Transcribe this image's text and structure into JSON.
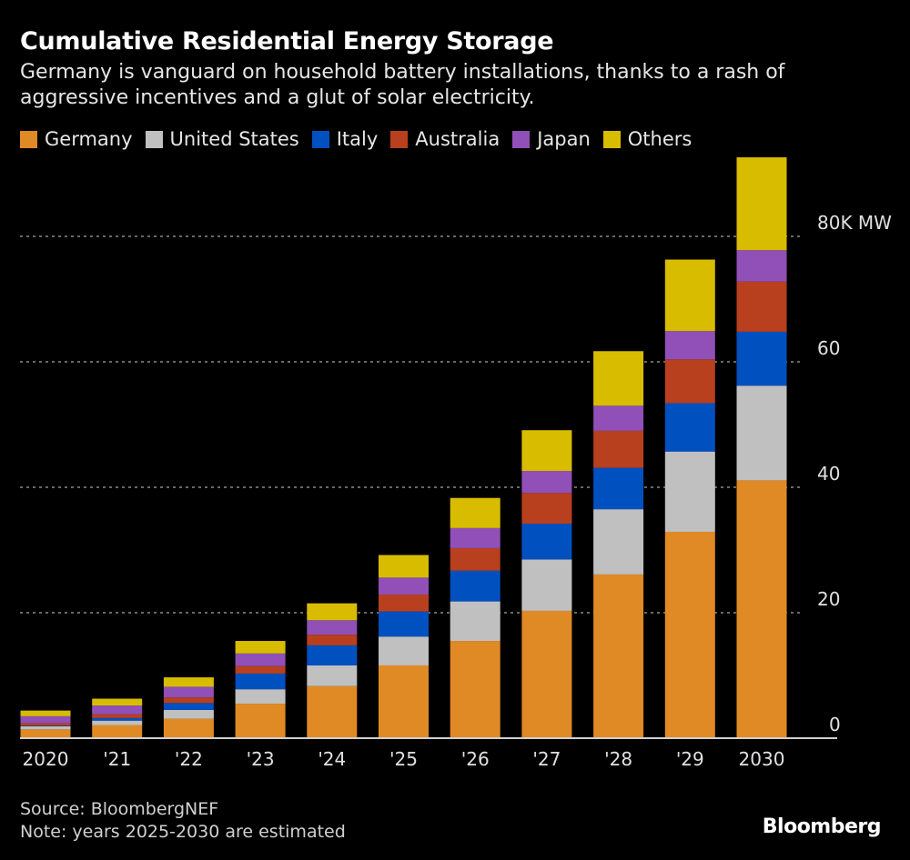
{
  "chart_data": {
    "type": "bar",
    "stacked": true,
    "title": "Cumulative Residential Energy Storage",
    "subtitle": "Germany is vanguard on household battery installations, thanks to a rash of aggressive incentives and a glut of solar electricity.",
    "categories": [
      "2020",
      "'21",
      "'22",
      "'23",
      "'24",
      "'25",
      "'26",
      "'27",
      "'28",
      "'29",
      "2030"
    ],
    "series": [
      {
        "name": "Germany",
        "color": "#e08a25",
        "values": [
          1.4,
          2.1,
          3.1,
          5.5,
          8.3,
          11.6,
          15.5,
          20.3,
          26.1,
          32.9,
          41.1
        ]
      },
      {
        "name": "United States",
        "color": "#c0c0c0",
        "values": [
          0.5,
          0.7,
          1.4,
          2.3,
          3.3,
          4.6,
          6.3,
          8.2,
          10.4,
          12.8,
          15.1
        ]
      },
      {
        "name": "Italy",
        "color": "#0050c0",
        "values": [
          0.1,
          0.4,
          1.1,
          2.5,
          3.2,
          4.0,
          4.9,
          5.7,
          6.6,
          7.7,
          8.6
        ]
      },
      {
        "name": "Australia",
        "color": "#b8401e",
        "values": [
          0.4,
          0.6,
          0.9,
          1.2,
          1.7,
          2.7,
          3.6,
          4.9,
          5.9,
          7.0,
          8.0
        ]
      },
      {
        "name": "Japan",
        "color": "#9050b8",
        "values": [
          1.1,
          1.4,
          1.7,
          2.0,
          2.3,
          2.7,
          3.2,
          3.5,
          4.0,
          4.5,
          5.0
        ]
      },
      {
        "name": "Others",
        "color": "#d8bc00",
        "values": [
          0.9,
          1.1,
          1.5,
          2.0,
          2.7,
          3.6,
          4.8,
          6.5,
          8.7,
          11.4,
          14.8
        ]
      }
    ],
    "yticks": [
      {
        "value": 0,
        "label": "0"
      },
      {
        "value": 20,
        "label": "20"
      },
      {
        "value": 40,
        "label": "40"
      },
      {
        "value": 60,
        "label": "60"
      },
      {
        "value": 80,
        "label": "80K MW"
      }
    ],
    "ylim": [
      0,
      93
    ],
    "grid": true,
    "legend": "top-left",
    "ylabel": "",
    "xlabel": ""
  },
  "footer": {
    "source": "Source: BloombergNEF",
    "note": "Note: years 2025-2030 are estimated"
  },
  "brand": "Bloomberg"
}
